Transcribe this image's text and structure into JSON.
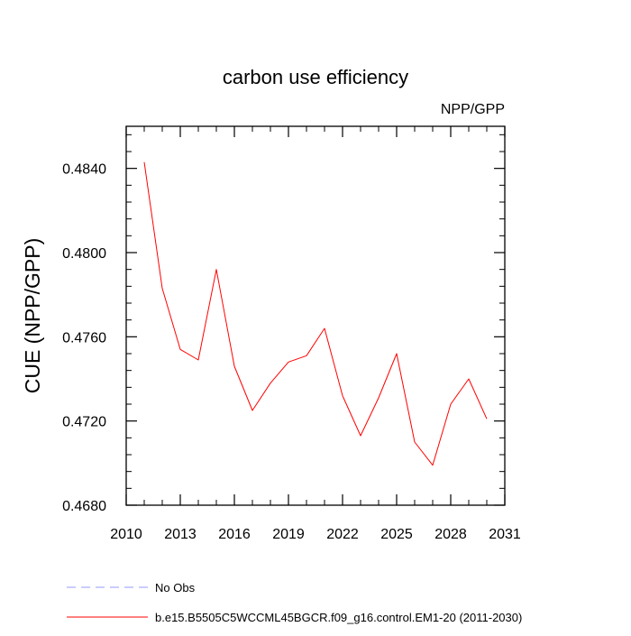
{
  "chart_data": {
    "type": "line",
    "title": "carbon use efficiency",
    "subtitle": "NPP/GPP",
    "ylabel": "CUE  (NPP/GPP)",
    "xlabel": "",
    "xlim": [
      2010,
      2031
    ],
    "ylim": [
      0.468,
      0.486
    ],
    "x_ticks": [
      2010,
      2013,
      2016,
      2019,
      2022,
      2025,
      2028,
      2031
    ],
    "x_tick_labels": [
      "2010",
      "2013",
      "2016",
      "2019",
      "2022",
      "2025",
      "2028",
      "2031"
    ],
    "y_ticks": [
      0.468,
      0.472,
      0.476,
      0.48,
      0.484
    ],
    "y_tick_labels": [
      "0.4680",
      "0.4720",
      "0.4760",
      "0.4800",
      "0.4840"
    ],
    "x_minor_step": 1,
    "y_minor_step": 0.0008,
    "grid": false,
    "series": [
      {
        "name": "b.e15.B5505C5WCCML45BGCR.f09_g16.control.EM1-20 (2011-2030)",
        "color": "#ff0000",
        "dash": "solid",
        "x": [
          2011,
          2012,
          2013,
          2014,
          2015,
          2016,
          2017,
          2018,
          2019,
          2020,
          2021,
          2022,
          2023,
          2024,
          2025,
          2026,
          2027,
          2028,
          2029,
          2030
        ],
        "values": [
          0.4843,
          0.4783,
          0.4754,
          0.4749,
          0.4792,
          0.4746,
          0.4725,
          0.4738,
          0.4748,
          0.4751,
          0.4764,
          0.4732,
          0.4713,
          0.4731,
          0.4752,
          0.471,
          0.4699,
          0.4728,
          0.474,
          0.4721
        ]
      }
    ],
    "legend": [
      {
        "label": "No Obs",
        "color": "#9999ff",
        "dash": "dashed"
      },
      {
        "label": "b.e15.B5505C5WCCML45BGCR.f09_g16.control.EM1-20 (2011-2030)",
        "color": "#ff0000",
        "dash": "solid"
      }
    ],
    "legend_position": "bottom-left"
  }
}
